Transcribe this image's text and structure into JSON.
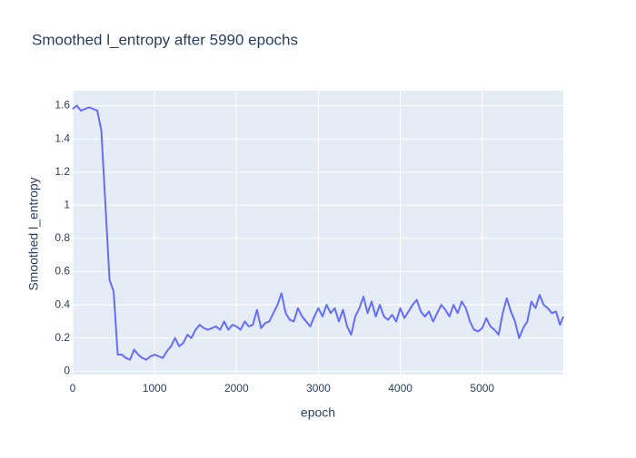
{
  "chart_data": {
    "type": "line",
    "title": "Smoothed l_entropy after 5990 epochs",
    "xlabel": "epoch",
    "ylabel": "Smoothed l_entropy",
    "color": "#636efa",
    "grid": true,
    "xlim": [
      0,
      5990
    ],
    "ylim": [
      -0.02,
      1.69
    ],
    "xticks": [
      0,
      1000,
      2000,
      3000,
      4000,
      5000
    ],
    "yticks": [
      0,
      0.2,
      0.4,
      0.6,
      0.8,
      1,
      1.2,
      1.4,
      1.6
    ],
    "x": [
      0,
      50,
      100,
      150,
      200,
      250,
      300,
      350,
      400,
      450,
      500,
      550,
      600,
      650,
      700,
      750,
      800,
      850,
      900,
      950,
      1000,
      1050,
      1100,
      1150,
      1200,
      1250,
      1300,
      1350,
      1400,
      1450,
      1500,
      1550,
      1600,
      1650,
      1700,
      1750,
      1800,
      1850,
      1900,
      1950,
      2000,
      2050,
      2100,
      2150,
      2200,
      2250,
      2300,
      2350,
      2400,
      2450,
      2500,
      2550,
      2600,
      2650,
      2700,
      2750,
      2800,
      2850,
      2900,
      2950,
      3000,
      3050,
      3100,
      3150,
      3200,
      3250,
      3300,
      3350,
      3400,
      3450,
      3500,
      3550,
      3600,
      3650,
      3700,
      3750,
      3800,
      3850,
      3900,
      3950,
      4000,
      4050,
      4100,
      4150,
      4200,
      4250,
      4300,
      4350,
      4400,
      4450,
      4500,
      4550,
      4600,
      4650,
      4700,
      4750,
      4800,
      4850,
      4900,
      4950,
      5000,
      5050,
      5100,
      5150,
      5200,
      5250,
      5300,
      5350,
      5400,
      5450,
      5500,
      5550,
      5600,
      5650,
      5700,
      5750,
      5800,
      5850,
      5900,
      5950,
      5990
    ],
    "values": [
      1.58,
      1.6,
      1.57,
      1.58,
      1.59,
      1.58,
      1.57,
      1.45,
      1.0,
      0.55,
      0.48,
      0.1,
      0.1,
      0.08,
      0.07,
      0.13,
      0.1,
      0.08,
      0.07,
      0.09,
      0.1,
      0.09,
      0.08,
      0.12,
      0.15,
      0.2,
      0.15,
      0.17,
      0.22,
      0.2,
      0.25,
      0.28,
      0.26,
      0.25,
      0.26,
      0.27,
      0.25,
      0.3,
      0.25,
      0.28,
      0.27,
      0.25,
      0.3,
      0.27,
      0.28,
      0.37,
      0.26,
      0.29,
      0.3,
      0.35,
      0.4,
      0.47,
      0.35,
      0.31,
      0.3,
      0.38,
      0.33,
      0.3,
      0.27,
      0.33,
      0.38,
      0.33,
      0.4,
      0.35,
      0.38,
      0.3,
      0.37,
      0.27,
      0.22,
      0.33,
      0.38,
      0.45,
      0.35,
      0.42,
      0.33,
      0.4,
      0.33,
      0.31,
      0.34,
      0.3,
      0.38,
      0.32,
      0.36,
      0.4,
      0.43,
      0.36,
      0.33,
      0.36,
      0.3,
      0.35,
      0.4,
      0.37,
      0.33,
      0.4,
      0.35,
      0.42,
      0.38,
      0.3,
      0.25,
      0.24,
      0.26,
      0.32,
      0.27,
      0.25,
      0.22,
      0.35,
      0.44,
      0.36,
      0.3,
      0.2,
      0.26,
      0.3,
      0.42,
      0.38,
      0.46,
      0.4,
      0.38,
      0.35,
      0.36,
      0.28,
      0.33
    ]
  }
}
